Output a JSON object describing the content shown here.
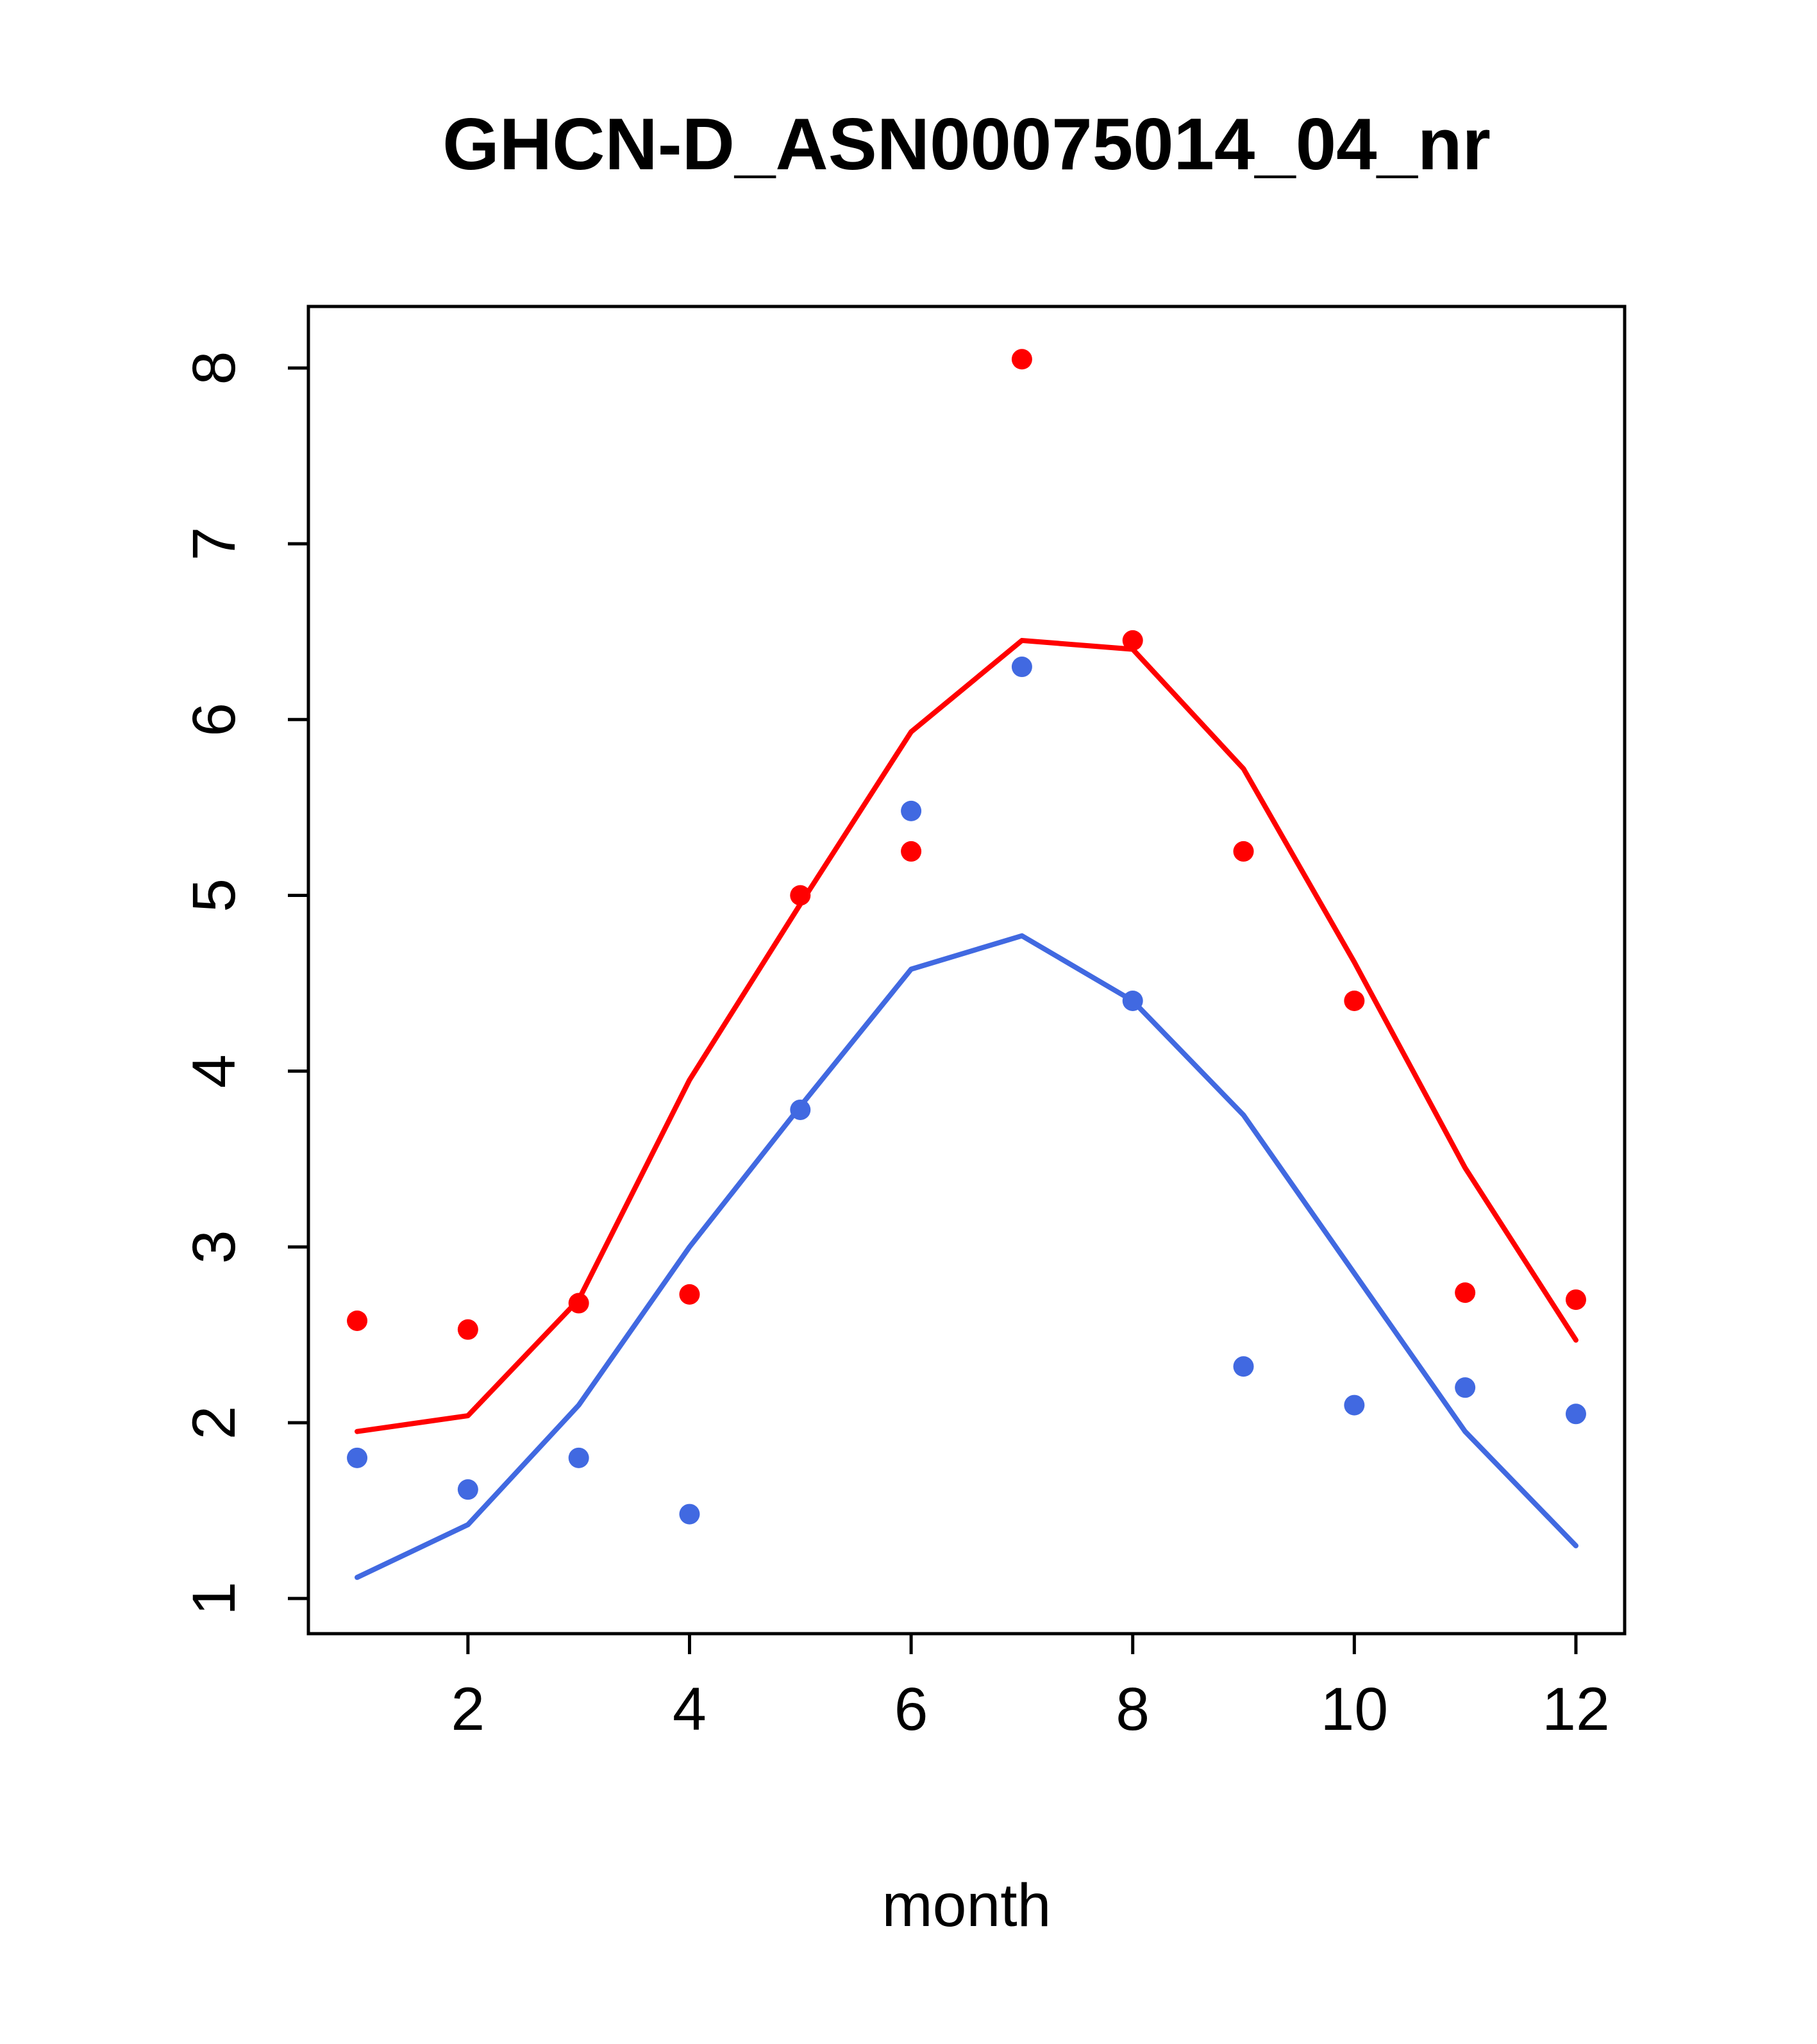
{
  "chart_data": {
    "type": "line",
    "title": "GHCN-D_ASN00075014_04_nr",
    "xlabel": "month",
    "ylabel": "",
    "x": [
      1,
      2,
      3,
      4,
      5,
      6,
      7,
      8,
      9,
      10,
      11,
      12
    ],
    "xlim": [
      0.56,
      12.44
    ],
    "ylim": [
      0.8,
      8.35
    ],
    "x_ticks": [
      2,
      4,
      6,
      8,
      10,
      12
    ],
    "y_ticks": [
      1,
      2,
      3,
      4,
      5,
      6,
      7,
      8
    ],
    "grid": false,
    "legend": "none",
    "colors": {
      "red": "#ff0000",
      "blue": "#4169e1",
      "axis": "#000000"
    },
    "series": [
      {
        "name": "red-line",
        "style": "line",
        "color": "#ff0000",
        "values": [
          1.95,
          2.04,
          2.7,
          3.95,
          4.95,
          5.93,
          6.45,
          6.4,
          5.72,
          4.62,
          3.45,
          2.47
        ]
      },
      {
        "name": "blue-line",
        "style": "line",
        "color": "#4169e1",
        "values": [
          1.12,
          1.42,
          2.1,
          3.0,
          3.8,
          4.58,
          4.77,
          4.4,
          3.75,
          2.85,
          1.95,
          1.3
        ]
      },
      {
        "name": "red-points",
        "style": "points",
        "color": "#ff0000",
        "values": [
          2.58,
          2.53,
          2.68,
          2.73,
          5.0,
          5.25,
          8.05,
          6.45,
          5.25,
          4.4,
          2.74,
          2.7
        ]
      },
      {
        "name": "blue-points",
        "style": "points",
        "color": "#4169e1",
        "values": [
          1.8,
          1.62,
          1.8,
          1.48,
          3.78,
          5.48,
          6.3,
          4.4,
          2.32,
          2.1,
          2.2,
          2.05
        ]
      }
    ]
  }
}
